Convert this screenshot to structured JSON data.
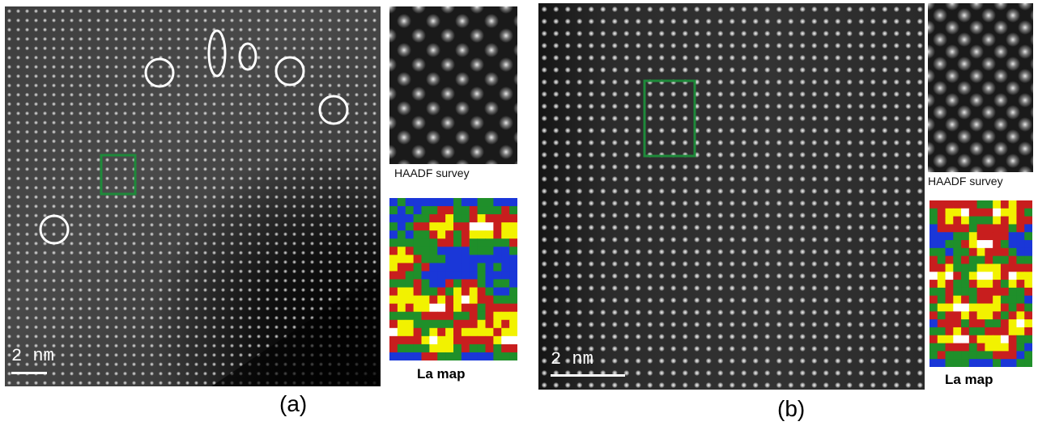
{
  "panel_a": {
    "label": "(a)",
    "scale_label": "2 nm",
    "haadf_caption": "HAADF survey",
    "map_caption": "La map",
    "marker_colors": {
      "circle": "#ffffff",
      "box": "#1e8a3a"
    }
  },
  "panel_b": {
    "label": "(b)",
    "scale_label": "2 nm",
    "haadf_caption": "HAADF survey",
    "map_caption": "La map",
    "marker_colors": {
      "box": "#1e8a3a"
    }
  },
  "map_palette": [
    "#1a37d8",
    "#1f8f2a",
    "#c81e1e",
    "#f2f200",
    "#ffffff"
  ]
}
